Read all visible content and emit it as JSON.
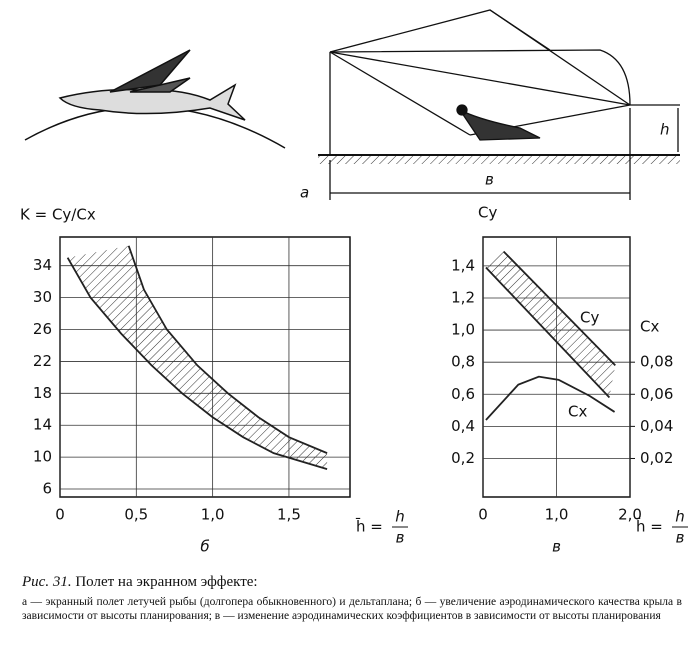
{
  "figure": {
    "label_a": "а",
    "label_b_span": "в",
    "label_h": "h"
  },
  "chart_data": [
    {
      "type": "line",
      "panel_label": "б",
      "y_label": "K = Cy/Cx",
      "x_label": {
        "lhs": "h̄ =",
        "num": "h",
        "den": "в"
      },
      "xlim": [
        0,
        1.9
      ],
      "ylim": [
        5,
        37.6
      ],
      "xticks": [
        0,
        {
          "value": 0.5,
          "label": "0,5"
        },
        {
          "value": 1.0,
          "label": "1,0"
        },
        {
          "value": 1.5,
          "label": "1,5"
        }
      ],
      "yticks": [
        6,
        10,
        14,
        18,
        22,
        26,
        30,
        34
      ],
      "grid": true,
      "band": true,
      "series": [
        {
          "color": "#222222",
          "x": [
            0.45,
            0.55,
            0.7,
            0.9,
            1.1,
            1.3,
            1.5,
            1.75
          ],
          "values": [
            36.5,
            31,
            26,
            21.5,
            18,
            15,
            12.5,
            10.5
          ]
        },
        {
          "color": "#222222",
          "x": [
            0.05,
            0.2,
            0.4,
            0.6,
            0.8,
            1.0,
            1.2,
            1.4,
            1.75
          ],
          "values": [
            35,
            30,
            25.5,
            21.5,
            18,
            15,
            12.5,
            10.5,
            8.5
          ]
        }
      ]
    },
    {
      "type": "line",
      "panel_label": "в",
      "y_label": "Cy",
      "y2_label": "Cx",
      "x_label": {
        "lhs": "h̄ =",
        "num": "h",
        "den": "в"
      },
      "xlim": [
        0,
        2.0
      ],
      "ylim": [
        -0.04,
        1.58
      ],
      "y2lim": [
        -0.004,
        0.158
      ],
      "xticks": [
        0,
        {
          "value": 1.0,
          "label": "1,0"
        },
        {
          "value": 2.0,
          "label": "2,0"
        }
      ],
      "yticks": [
        {
          "value": 0.2,
          "label": "0,2"
        },
        {
          "value": 0.4,
          "label": "0,4"
        },
        {
          "value": 0.6,
          "label": "0,6"
        },
        {
          "value": 0.8,
          "label": "0,8"
        },
        {
          "value": 1.0,
          "label": "1,0"
        },
        {
          "value": 1.2,
          "label": "1,2"
        },
        {
          "value": 1.4,
          "label": "1,4"
        }
      ],
      "y2ticks": [
        {
          "value": 0.02,
          "label": "0,02"
        },
        {
          "value": 0.04,
          "label": "0,04"
        },
        {
          "value": 0.06,
          "label": "0,06"
        },
        {
          "value": 0.08,
          "label": "0,08"
        }
      ],
      "grid": true,
      "band": true,
      "annotations": [
        "Cy",
        "Cx"
      ],
      "series": [
        {
          "color": "#222222",
          "x": [
            0.28,
            1.8
          ],
          "values": [
            1.49,
            0.78
          ]
        },
        {
          "color": "#222222",
          "x": [
            0.04,
            1.72
          ],
          "values": [
            1.39,
            0.58
          ]
        },
        {
          "color": "#222222",
          "axis": "y2",
          "x": [
            0.04,
            0.48,
            0.76,
            1.03,
            1.45,
            1.79
          ],
          "values": [
            0.044,
            0.066,
            0.071,
            0.069,
            0.059,
            0.049
          ]
        }
      ]
    }
  ],
  "caption": {
    "lead": "Рис. 31.",
    "title": "Полет на экранном эффекте:",
    "body": "а — экранный полет летучей рыбы (долгопера обыкновенного) и дельтаплана; б — увеличение аэродинамического качества крыла в зависимости от высоты планирования; в — изменение аэродинамических коэффициентов в зависимости от высоты планирования"
  }
}
